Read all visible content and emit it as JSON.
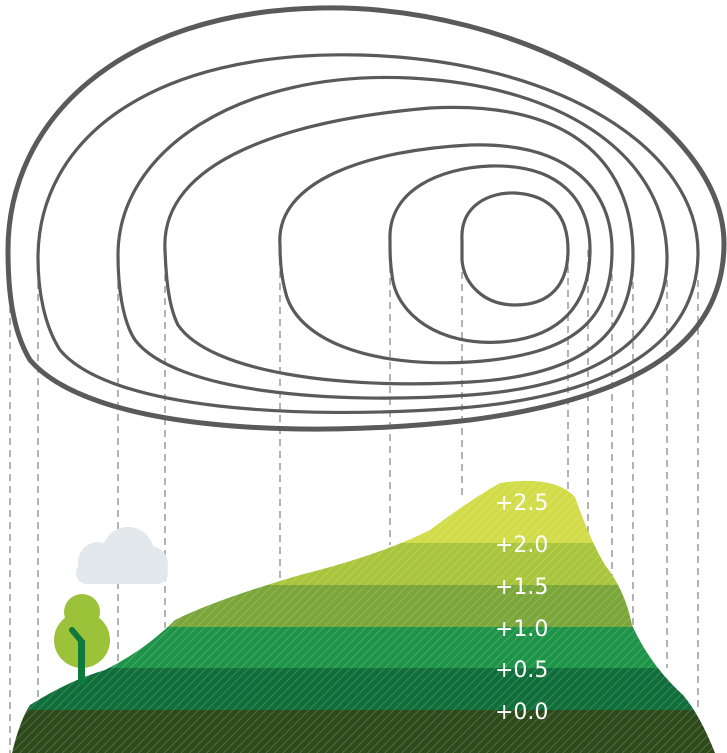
{
  "colors": {
    "contour_stroke": "#5a5a5a",
    "guide_line": "#8a8a8a",
    "cloud": "#e3e8ec",
    "tree_crown": "#9cc23a",
    "tree_trunk": "#0e7a3c",
    "label_text": "#ffffff",
    "bands": [
      "#2d4a1a",
      "#0f6e3a",
      "#1e9448",
      "#7aa63a",
      "#a9c53c",
      "#d2dc48"
    ]
  },
  "levels": [
    {
      "label": "+0.0",
      "color": "#2d4a1a"
    },
    {
      "label": "+0.5",
      "color": "#0f6e3a"
    },
    {
      "label": "+1.0",
      "color": "#1e9448"
    },
    {
      "label": "+1.5",
      "color": "#7aa63a"
    },
    {
      "label": "+2.0",
      "color": "#a9c53c"
    },
    {
      "label": "+2.5",
      "color": "#d2dc48"
    }
  ],
  "icons": {
    "tree": "tree-icon",
    "cloud": "cloud-icon"
  }
}
